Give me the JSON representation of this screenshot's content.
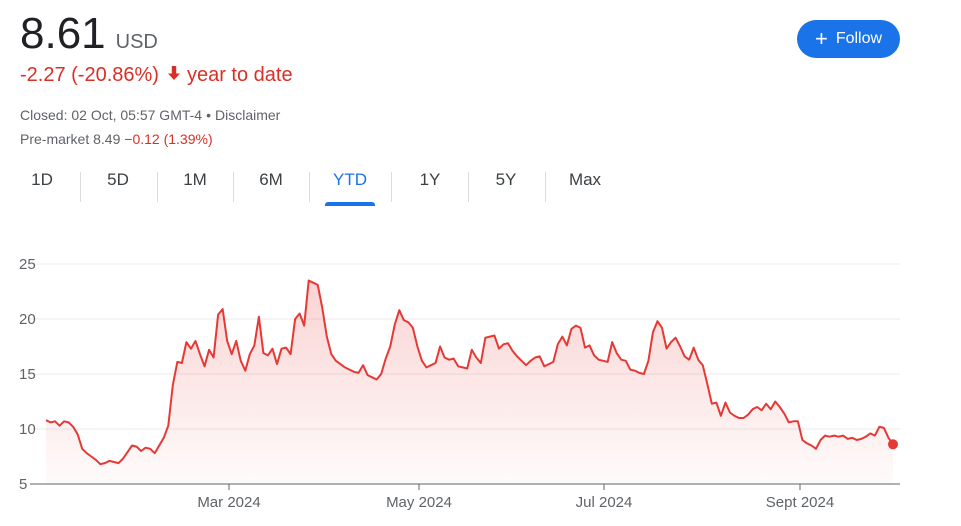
{
  "quote": {
    "price": "8.61",
    "currency": "USD",
    "change": "-2.27 (-20.86%)",
    "period": "year to date",
    "closed_label": "Closed: 02 Oct, 05:57 GMT-4",
    "disclaimer": "Disclaimer",
    "premarket_label": "Pre-market 8.49",
    "premarket_change": "−0.12 (1.39%)"
  },
  "follow": {
    "label": "Follow",
    "icon": "plus-icon"
  },
  "tabs": [
    "1D",
    "5D",
    "1M",
    "6M",
    "YTD",
    "1Y",
    "5Y",
    "Max"
  ],
  "active_tab": "YTD",
  "colors": {
    "line": "#e53935",
    "accent": "#1a73e8",
    "negative": "#d93025",
    "grid": "#ebebeb"
  },
  "chart_data": {
    "type": "area",
    "title": "",
    "xlabel": "",
    "ylabel": "",
    "ylim": [
      5,
      25
    ],
    "yticks": [
      5,
      10,
      15,
      20,
      25
    ],
    "xticks": [
      "Mar 2024",
      "May 2024",
      "Jul 2024",
      "Sept 2024"
    ],
    "grid": true,
    "series": [
      {
        "values": [
          10.8,
          10.6,
          10.7,
          10.3,
          10.7,
          10.6,
          10.2,
          9.5,
          8.2,
          7.8,
          7.5,
          7.2,
          6.8,
          6.9,
          7.1,
          7.0,
          6.9,
          7.3,
          7.9,
          8.5,
          8.4,
          8.0,
          8.3,
          8.2,
          7.8,
          8.5,
          9.2,
          10.3,
          14.0,
          16.1,
          16.0,
          17.9,
          17.3,
          18.0,
          16.8,
          15.7,
          17.2,
          16.5,
          20.4,
          20.9,
          18.0,
          16.8,
          18.0,
          16.2,
          15.3,
          16.8,
          17.6,
          20.2,
          16.9,
          16.7,
          17.3,
          15.9,
          17.3,
          17.4,
          16.8,
          20.0,
          20.5,
          19.4,
          23.5,
          23.3,
          23.1,
          21.0,
          18.4,
          16.8,
          16.2,
          15.9,
          15.6,
          15.4,
          15.2,
          15.1,
          15.8,
          14.9,
          14.7,
          14.5,
          15.0,
          16.4,
          17.5,
          19.5,
          20.8,
          19.9,
          19.7,
          19.2,
          17.5,
          16.2,
          15.6,
          15.8,
          16.0,
          17.5,
          16.5,
          16.3,
          16.4,
          15.7,
          15.6,
          15.5,
          17.2,
          16.5,
          16.0,
          18.3,
          18.4,
          18.5,
          17.3,
          17.7,
          17.8,
          17.1,
          16.6,
          16.2,
          15.8,
          16.2,
          16.5,
          16.6,
          15.7,
          15.9,
          16.1,
          17.7,
          18.4,
          17.6,
          19.1,
          19.4,
          19.2,
          17.4,
          17.6,
          16.7,
          16.3,
          16.2,
          16.1,
          17.9,
          16.9,
          16.3,
          16.2,
          15.4,
          15.3,
          15.1,
          15.0,
          16.2,
          18.8,
          19.8,
          19.2,
          17.3,
          17.9,
          18.3,
          17.5,
          16.6,
          16.3,
          17.4,
          16.3,
          15.8,
          14.1,
          12.3,
          12.4,
          11.2,
          12.4,
          11.5,
          11.2,
          11.0,
          11.0,
          11.3,
          11.8,
          12.0,
          11.7,
          12.3,
          11.8,
          12.5,
          12.0,
          11.4,
          10.6,
          10.7,
          10.7,
          9.0,
          8.7,
          8.5,
          8.2,
          9.0,
          9.4,
          9.3,
          9.4,
          9.3,
          9.4,
          9.1,
          9.2,
          9.0,
          9.1,
          9.3,
          9.6,
          9.4,
          10.2,
          10.1,
          9.2,
          8.61
        ]
      }
    ],
    "last_value": 8.61
  }
}
